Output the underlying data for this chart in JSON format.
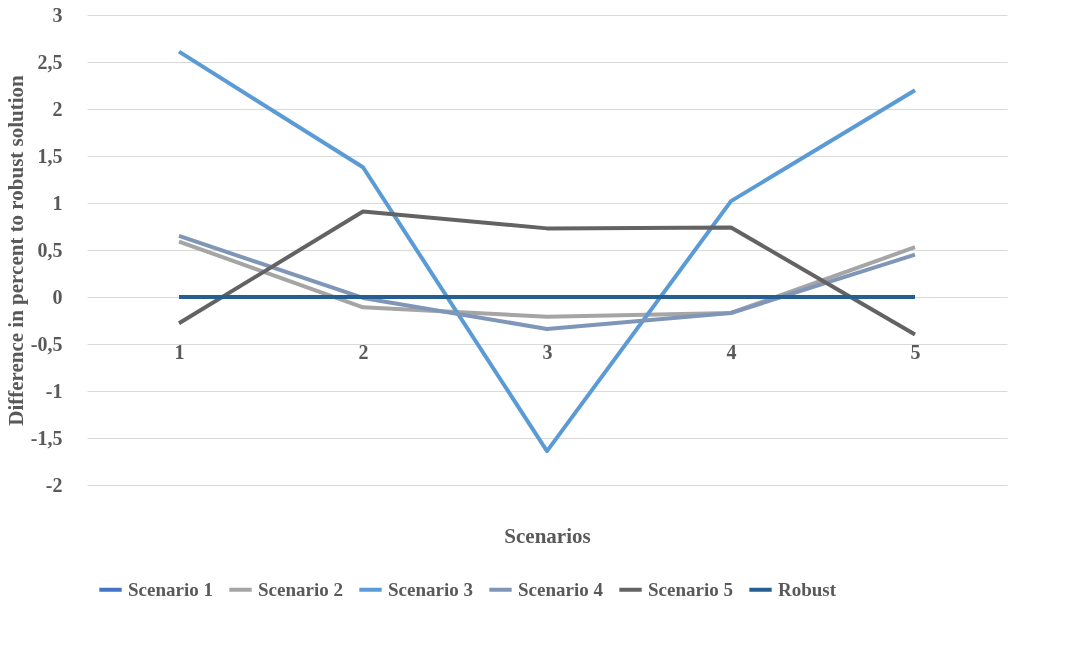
{
  "chart_data": {
    "type": "line",
    "xlabel": "Scenarios",
    "ylabel": "Difference in percent to robust solution",
    "categories": [
      "1",
      "2",
      "3",
      "4",
      "5"
    ],
    "series": [
      {
        "name": "Scenario 1",
        "color": "#4472c4",
        "values": [
          null,
          null,
          null,
          null,
          null
        ]
      },
      {
        "name": "Scenario 2",
        "color": "#a5a5a5",
        "values": [
          0.59,
          -0.11,
          -0.21,
          -0.17,
          0.53
        ]
      },
      {
        "name": "Scenario 3",
        "color": "#5b9bd5",
        "values": [
          2.61,
          1.38,
          -1.64,
          1.02,
          2.2
        ]
      },
      {
        "name": "Scenario 4",
        "color": "#7f96b8",
        "values": [
          0.65,
          -0.01,
          -0.34,
          -0.17,
          0.45
        ]
      },
      {
        "name": "Scenario 5",
        "color": "#636363",
        "values": [
          -0.28,
          0.91,
          0.73,
          0.74,
          -0.4
        ]
      },
      {
        "name": "Robust",
        "color": "#255e91",
        "values": [
          0,
          0,
          0,
          0,
          0
        ]
      }
    ],
    "ylim": [
      -2,
      3
    ],
    "yticks": [
      {
        "value": -2,
        "label": "-2"
      },
      {
        "value": -1.5,
        "label": "-1,5"
      },
      {
        "value": -1,
        "label": "-1"
      },
      {
        "value": -0.5,
        "label": "-0,5"
      },
      {
        "value": 0,
        "label": "0"
      },
      {
        "value": 0.5,
        "label": "0,5"
      },
      {
        "value": 1,
        "label": "1"
      },
      {
        "value": 1.5,
        "label": "1,5"
      },
      {
        "value": 2,
        "label": "2"
      },
      {
        "value": 2.5,
        "label": "2,5"
      },
      {
        "value": 3,
        "label": "3"
      }
    ],
    "grid": "y",
    "legend": "bottom",
    "marker": "none",
    "line_style": "solid"
  }
}
